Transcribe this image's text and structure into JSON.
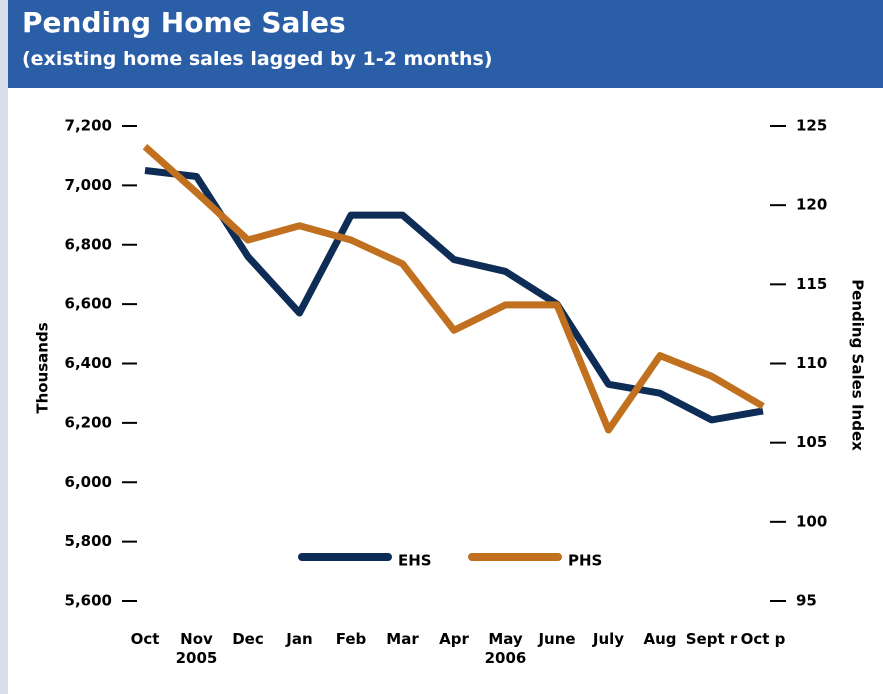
{
  "chart_data": {
    "type": "line",
    "title": "Pending Home Sales",
    "subtitle": "(existing home sales lagged by 1-2 months)",
    "y_label": "Thousands",
    "y2_label": "Pending Sales Index",
    "categories": [
      "Oct",
      "Nov\n2005",
      "Dec",
      "Jan",
      "Feb",
      "Mar",
      "Apr",
      "May\n2006",
      "June",
      "July",
      "Aug",
      "Sept r",
      "Oct p"
    ],
    "series": [
      {
        "name": "EHS",
        "color": "#0d2d57",
        "values": [
          7050,
          7030,
          6760,
          6570,
          6900,
          6900,
          6750,
          6710,
          6600,
          6330,
          6300,
          6210,
          6240
        ]
      },
      {
        "name": "PHS",
        "color": "#c0701e",
        "axis": "y2",
        "values": [
          123.7,
          120.8,
          117.8,
          118.7,
          117.8,
          116.3,
          112.1,
          113.7,
          113.7,
          105.8,
          110.5,
          109.2,
          107.3
        ]
      }
    ],
    "ylim": [
      5600,
      7200
    ],
    "yticks": [
      {
        "value": 5600,
        "label": "5,600"
      },
      {
        "value": 5800,
        "label": "5,800"
      },
      {
        "value": 6000,
        "label": "6,000"
      },
      {
        "value": 6200,
        "label": "6,200"
      },
      {
        "value": 6400,
        "label": "6,400"
      },
      {
        "value": 6600,
        "label": "6,600"
      },
      {
        "value": 6800,
        "label": "6,800"
      },
      {
        "value": 7000,
        "label": "7,000"
      },
      {
        "value": 7200,
        "label": "7,200"
      }
    ],
    "y2lim": [
      95,
      125
    ],
    "y2ticks": [
      95,
      100,
      105,
      110,
      115,
      120,
      125
    ],
    "legend": "bottom"
  }
}
